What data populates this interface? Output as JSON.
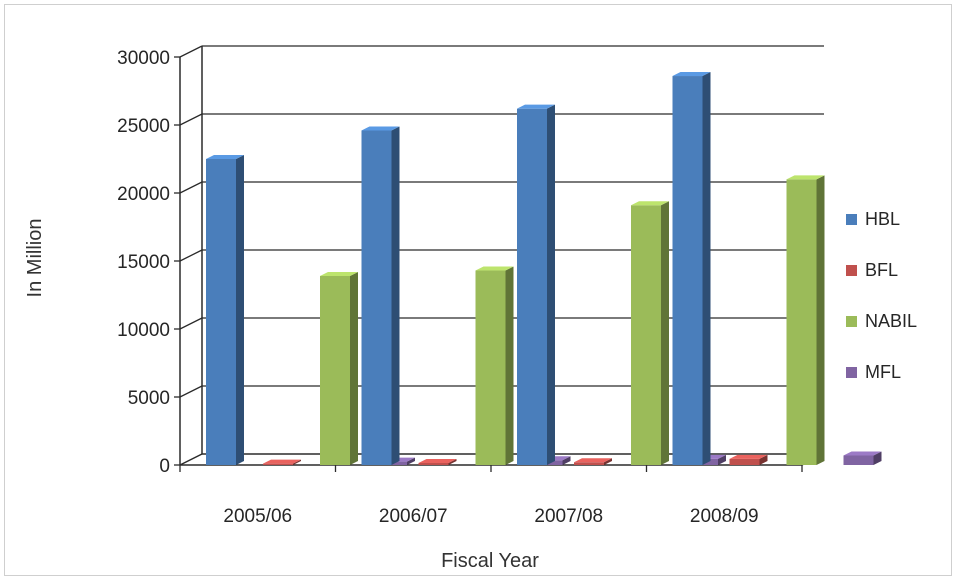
{
  "chart_data": {
    "type": "bar",
    "style": "3d-clustered-column",
    "categories": [
      "2005/06",
      "2006/07",
      "2007/08",
      "2008/09"
    ],
    "series": [
      {
        "name": "HBL",
        "color": "#4a7ebb",
        "values": [
          22500,
          24600,
          26200,
          28600
        ]
      },
      {
        "name": "BFL",
        "color": "#c0504d",
        "values": [
          100,
          150,
          200,
          450
        ]
      },
      {
        "name": "NABIL",
        "color": "#9bbb59",
        "values": [
          13900,
          14300,
          19100,
          21000
        ]
      },
      {
        "name": "MFL",
        "color": "#8064a2",
        "values": [
          250,
          350,
          450,
          700
        ]
      }
    ],
    "ylim": [
      0,
      30000
    ],
    "yticks": [
      "0",
      "5000",
      "10000",
      "15000",
      "20000",
      "25000",
      "30000"
    ],
    "xlabel": "Fiscal Year",
    "ylabel": "In Million",
    "grid": true,
    "legend": "right"
  }
}
